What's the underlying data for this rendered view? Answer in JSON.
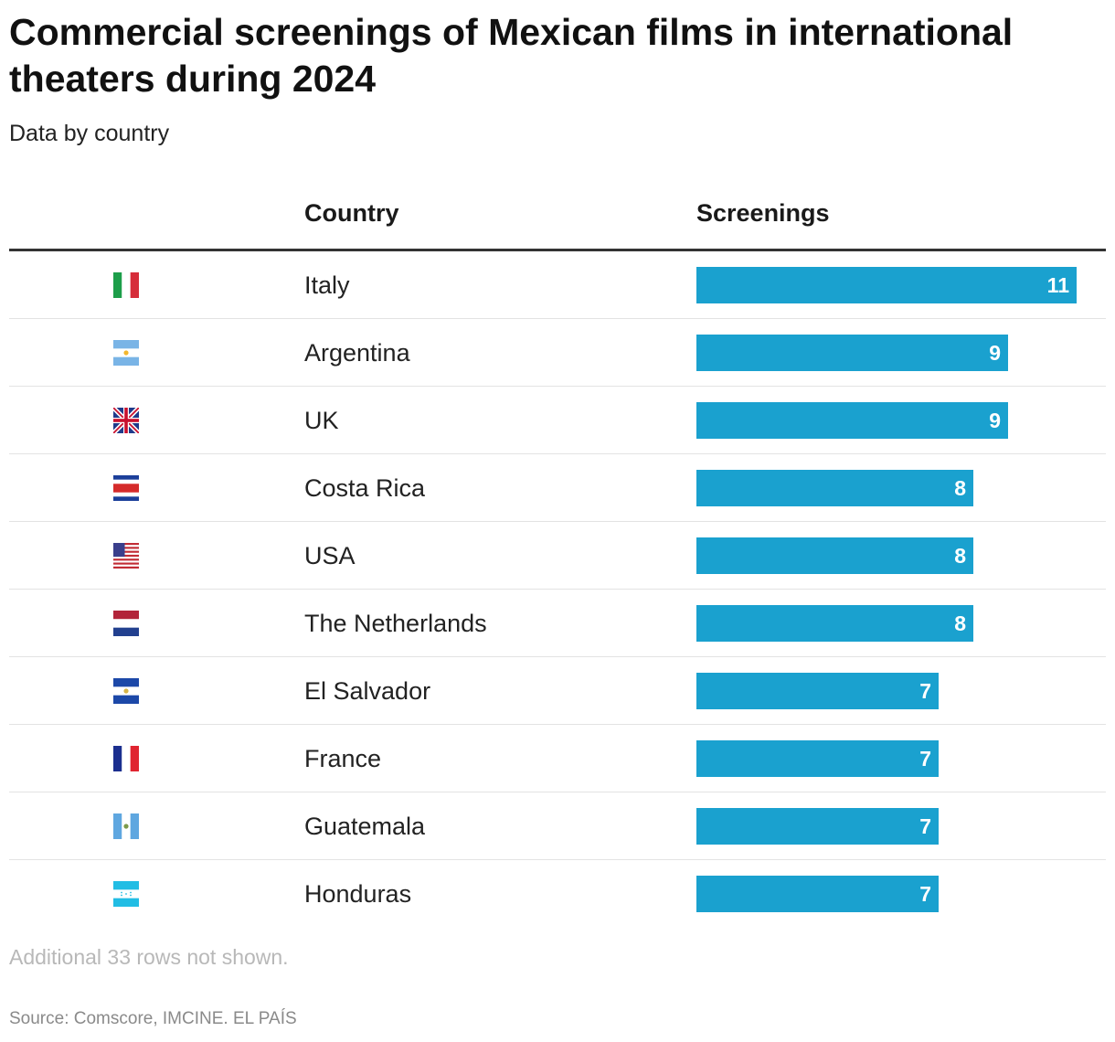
{
  "title": "Commercial screenings of Mexican films in international theaters during 2024",
  "subtitle": "Data by country",
  "headers": {
    "country": "Country",
    "screenings": "Screenings"
  },
  "colors": {
    "bar": "#1aa1cf",
    "bar_label": "#ffffff"
  },
  "chart_data": {
    "type": "bar",
    "orientation": "horizontal",
    "title": "Commercial screenings of Mexican films in international theaters during 2024",
    "subtitle": "Data by country",
    "categories": [
      "Italy",
      "Argentina",
      "UK",
      "Costa Rica",
      "USA",
      "The Netherlands",
      "El Salvador",
      "France",
      "Guatemala",
      "Honduras"
    ],
    "values": [
      11,
      9,
      9,
      8,
      8,
      8,
      7,
      7,
      7,
      7
    ],
    "flags": [
      "italy-flag-icon",
      "argentina-flag-icon",
      "uk-flag-icon",
      "costa-rica-flag-icon",
      "usa-flag-icon",
      "netherlands-flag-icon",
      "el-salvador-flag-icon",
      "france-flag-icon",
      "guatemala-flag-icon",
      "honduras-flag-icon"
    ],
    "xlim": [
      0,
      12
    ],
    "data_labels": true,
    "grid": false
  },
  "note": "Additional 33 rows not shown.",
  "source": "Source: Comscore, IMCINE. EL PAÍS"
}
